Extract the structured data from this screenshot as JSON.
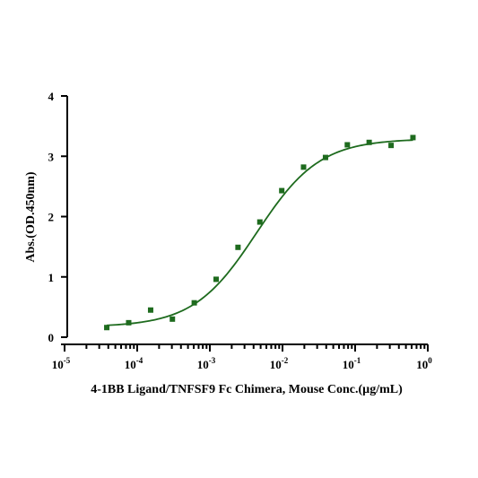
{
  "chart_data": {
    "type": "scatter",
    "title": "",
    "xlabel": "4-1BB Ligand/TNFSF9 Fc Chimera, Mouse Conc.(µg/mL)",
    "ylabel": "Abs.(OD.450nm)",
    "x_scale": "log",
    "xlim": [
      1e-05,
      1
    ],
    "ylim": [
      0,
      4
    ],
    "x_ticks": [
      {
        "base": "10",
        "exp": "-5"
      },
      {
        "base": "10",
        "exp": "-4"
      },
      {
        "base": "10",
        "exp": "-3"
      },
      {
        "base": "10",
        "exp": "-2"
      },
      {
        "base": "10",
        "exp": "-1"
      },
      {
        "base": "10",
        "exp": "0"
      }
    ],
    "y_ticks": [
      "0",
      "1",
      "2",
      "3",
      "4"
    ],
    "grid": false,
    "legend": "none",
    "series": [
      {
        "marker": "square",
        "color": "#1e6b1e",
        "x": [
          3.81e-05,
          7.63e-05,
          0.000153,
          0.000305,
          0.00061,
          0.00122,
          0.00244,
          0.00488,
          0.00977,
          0.0195,
          0.0391,
          0.0781,
          0.156,
          0.3125,
          0.625
        ],
        "y": [
          0.16,
          0.24,
          0.45,
          0.3,
          0.57,
          0.96,
          1.49,
          1.91,
          2.43,
          2.82,
          2.98,
          3.19,
          3.23,
          3.18,
          3.31
        ]
      }
    ],
    "fit_curve": {
      "model": "4PL",
      "color": "#1e6b1e",
      "bottom": 0.17,
      "top": 3.29,
      "ec50": 0.0044,
      "hill": 1.0
    }
  }
}
